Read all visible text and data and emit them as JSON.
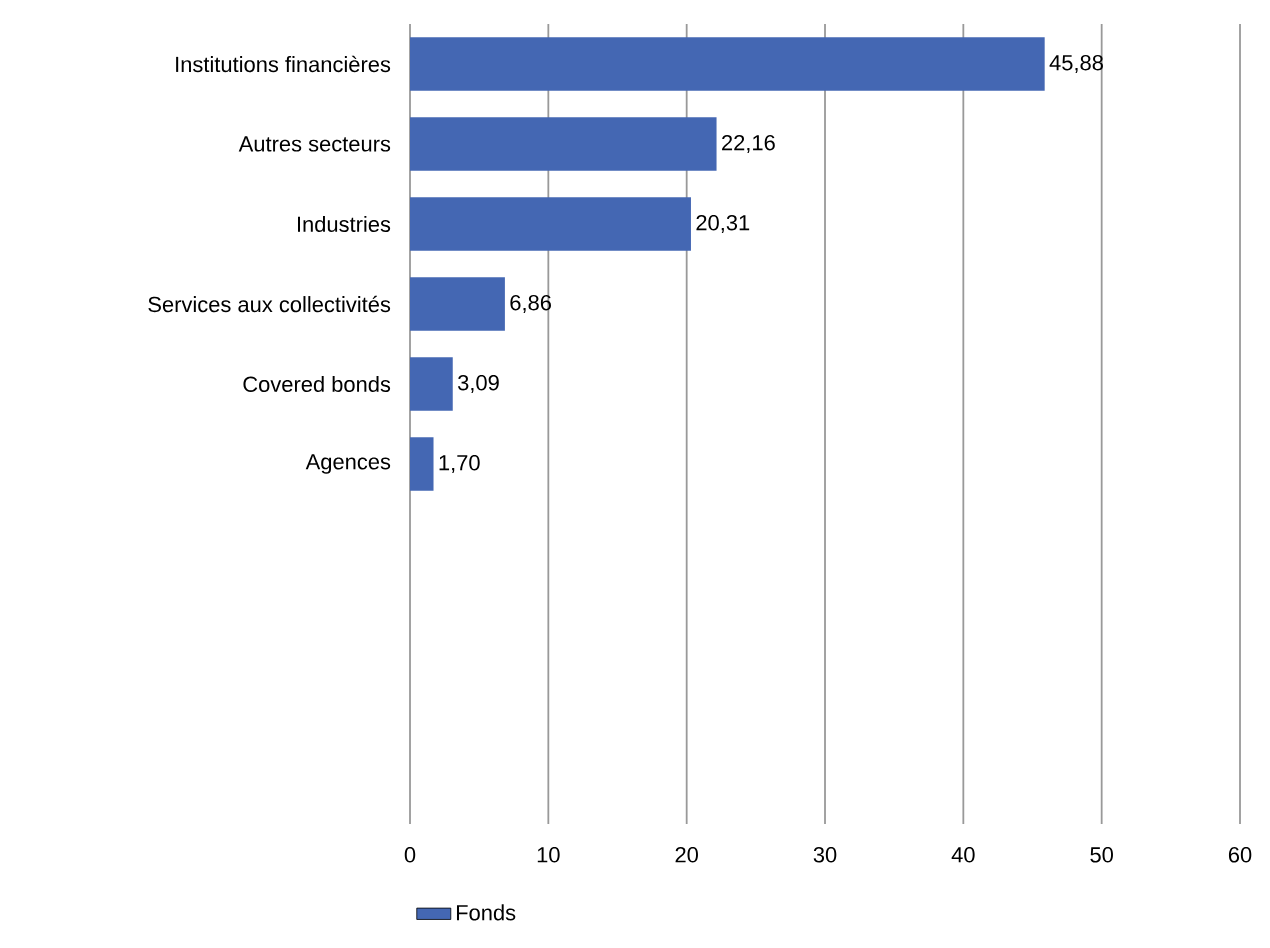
{
  "chart_data": {
    "type": "bar",
    "orientation": "horizontal",
    "categories": [
      "Institutions financières",
      "Autres secteurs",
      "Industries",
      "Services aux collectivités",
      "Covered bonds",
      "Agences",
      null,
      null,
      null,
      null
    ],
    "series": [
      {
        "name": "Fonds",
        "color": "#4467b3",
        "values": [
          45.88,
          22.16,
          20.31,
          6.86,
          3.09,
          1.7,
          null,
          null,
          null,
          null
        ],
        "value_labels": [
          "45,88",
          "22,16",
          "20,31",
          "6,86",
          "3,09",
          "1,70",
          null,
          null,
          null,
          null
        ]
      }
    ],
    "xlim": [
      0,
      60
    ],
    "xticks": [
      0,
      10,
      20,
      30,
      40,
      50,
      60
    ],
    "grid": "x",
    "legend": "bottom left"
  }
}
